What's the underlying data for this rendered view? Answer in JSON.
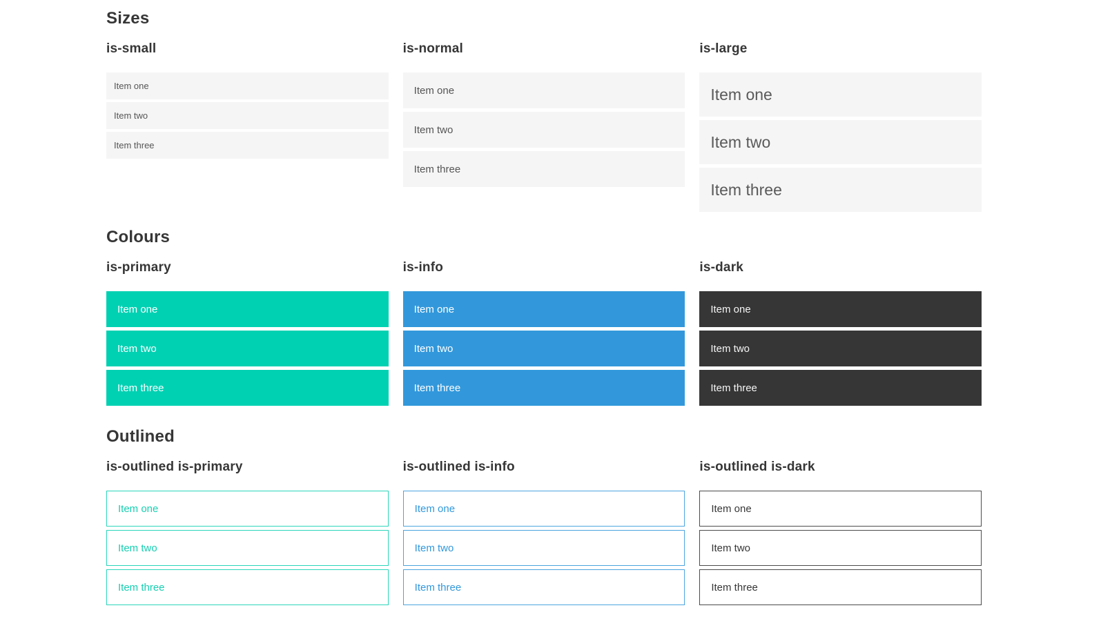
{
  "colors": {
    "primary": "#00d1b2",
    "info": "#3298db",
    "dark": "#363636",
    "item_background": "#f5f5f5",
    "item_text": "#555555",
    "heading_text": "#363636",
    "page_background": "#ffffff"
  },
  "sections": [
    {
      "title": "Sizes",
      "groups": [
        {
          "label": "is-small",
          "variant": "size-small",
          "items": [
            "Item one",
            "Item two",
            "Item three"
          ]
        },
        {
          "label": "is-normal",
          "variant": "size-normal",
          "items": [
            "Item one",
            "Item two",
            "Item three"
          ]
        },
        {
          "label": "is-large",
          "variant": "size-large",
          "items": [
            "Item one",
            "Item two",
            "Item three"
          ]
        }
      ]
    },
    {
      "title": "Colours",
      "groups": [
        {
          "label": "is-primary",
          "variant": "color-primary",
          "items": [
            "Item one",
            "Item two",
            "Item three"
          ]
        },
        {
          "label": "is-info",
          "variant": "color-info",
          "items": [
            "Item one",
            "Item two",
            "Item three"
          ]
        },
        {
          "label": "is-dark",
          "variant": "color-dark",
          "items": [
            "Item one",
            "Item two",
            "Item three"
          ]
        }
      ]
    },
    {
      "title": "Outlined",
      "groups": [
        {
          "label": "is-outlined is-primary",
          "variant": "outlined-primary",
          "items": [
            "Item one",
            "Item two",
            "Item three"
          ]
        },
        {
          "label": "is-outlined is-info",
          "variant": "outlined-info",
          "items": [
            "Item one",
            "Item two",
            "Item three"
          ]
        },
        {
          "label": "is-outlined is-dark",
          "variant": "outlined-dark",
          "items": [
            "Item one",
            "Item two",
            "Item three"
          ]
        }
      ]
    }
  ]
}
